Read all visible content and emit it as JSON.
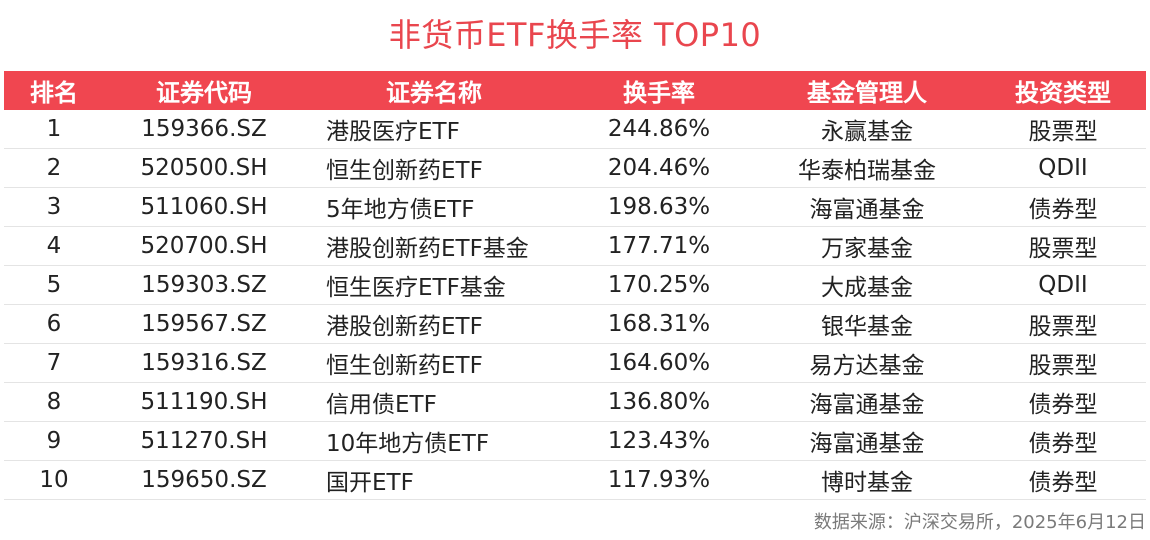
{
  "title": "非货币ETF换手率 TOP10",
  "columns": [
    "排名",
    "证券代码",
    "证券名称",
    "换手率",
    "基金管理人",
    "投资类型"
  ],
  "rows": [
    {
      "rank": "1",
      "code": "159366.SZ",
      "name": "港股医疗ETF",
      "turnover": "244.86%",
      "manager": "永赢基金",
      "type": "股票型"
    },
    {
      "rank": "2",
      "code": "520500.SH",
      "name": "恒生创新药ETF",
      "turnover": "204.46%",
      "manager": "华泰柏瑞基金",
      "type": "QDII"
    },
    {
      "rank": "3",
      "code": "511060.SH",
      "name": "5年地方债ETF",
      "turnover": "198.63%",
      "manager": "海富通基金",
      "type": "债券型"
    },
    {
      "rank": "4",
      "code": "520700.SH",
      "name": "港股创新药ETF基金",
      "turnover": "177.71%",
      "manager": "万家基金",
      "type": "股票型"
    },
    {
      "rank": "5",
      "code": "159303.SZ",
      "name": "恒生医疗ETF基金",
      "turnover": "170.25%",
      "manager": "大成基金",
      "type": "QDII"
    },
    {
      "rank": "6",
      "code": "159567.SZ",
      "name": "港股创新药ETF",
      "turnover": "168.31%",
      "manager": "银华基金",
      "type": "股票型"
    },
    {
      "rank": "7",
      "code": "159316.SZ",
      "name": "恒生创新药ETF",
      "turnover": "164.60%",
      "manager": "易方达基金",
      "type": "股票型"
    },
    {
      "rank": "8",
      "code": "511190.SH",
      "name": "信用债ETF",
      "turnover": "136.80%",
      "manager": "海富通基金",
      "type": "债券型"
    },
    {
      "rank": "9",
      "code": "511270.SH",
      "name": "10年地方债ETF",
      "turnover": "123.43%",
      "manager": "海富通基金",
      "type": "债券型"
    },
    {
      "rank": "10",
      "code": "159650.SZ",
      "name": "国开ETF",
      "turnover": "117.93%",
      "manager": "博时基金",
      "type": "债券型"
    }
  ],
  "source": "数据来源：沪深交易所，2025年6月12日",
  "colors": {
    "title": "#e9464e",
    "header_bg": "#f04650",
    "header_text": "#ffffff"
  }
}
